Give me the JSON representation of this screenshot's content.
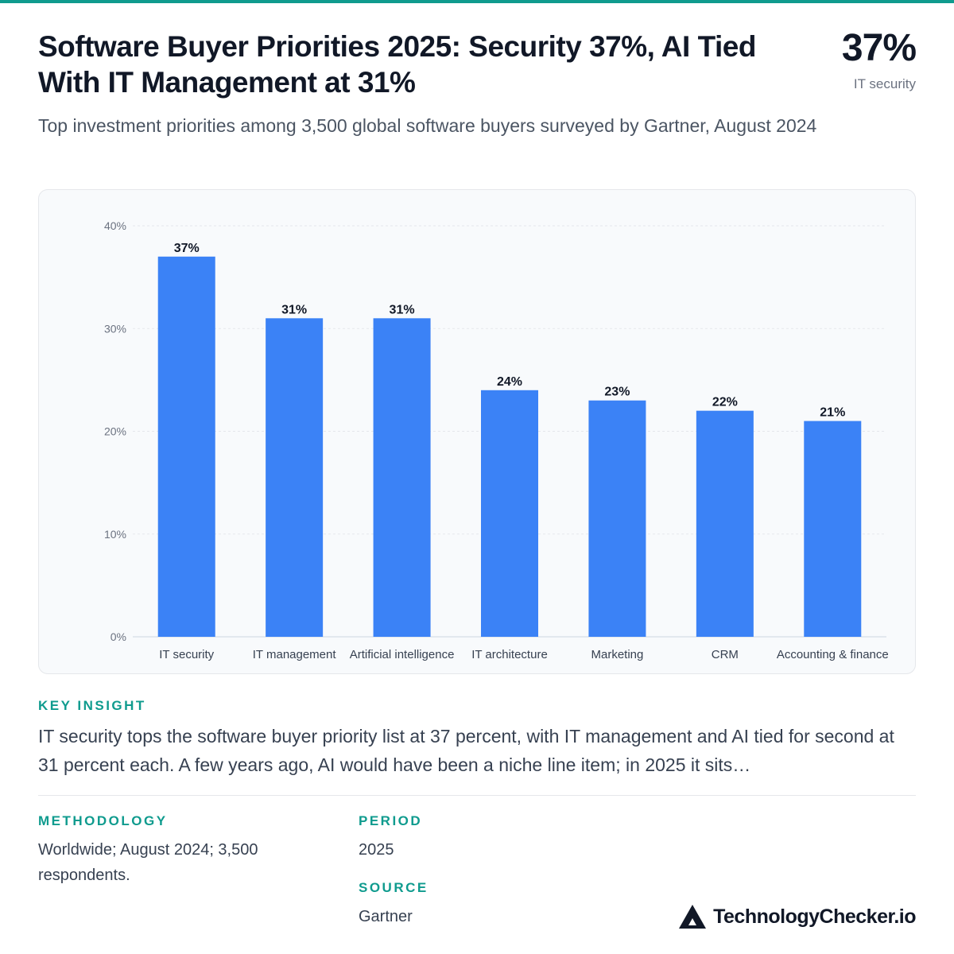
{
  "header": {
    "title": "Software Buyer Priorities 2025: Security 37%, AI Tied With IT Management at 31%",
    "subtitle": "Top investment priorities among 3,500 global software buyers surveyed by Gartner, August 2024",
    "stat_value": "37%",
    "stat_label": "IT security"
  },
  "chart_data": {
    "type": "bar",
    "categories": [
      "IT security",
      "IT management",
      "Artificial intelligence",
      "IT architecture",
      "Marketing",
      "CRM",
      "Accounting & finance"
    ],
    "values": [
      37,
      31,
      31,
      24,
      23,
      22,
      21
    ],
    "value_labels": [
      "37%",
      "31%",
      "31%",
      "24%",
      "23%",
      "22%",
      "21%"
    ],
    "y_ticks": [
      0,
      10,
      20,
      30,
      40
    ],
    "y_tick_labels": [
      "0%",
      "10%",
      "20%",
      "30%",
      "40%"
    ],
    "ylim": [
      0,
      40
    ],
    "grid": true,
    "bar_color": "#3b82f6",
    "title": "",
    "xlabel": "",
    "ylabel": ""
  },
  "insight": {
    "label": "KEY INSIGHT",
    "text": "IT security tops the software buyer priority list at 37 percent, with IT management and AI tied for second at 31 percent each. A few years ago, AI would have been a niche line item; in 2025 it sits…"
  },
  "meta": {
    "methodology_label": "METHODOLOGY",
    "methodology_text": "Worldwide; August 2024; 3,500 respondents.",
    "period_label": "PERIOD",
    "period_text": "2025",
    "source_label": "SOURCE",
    "source_text": "Gartner"
  },
  "brand": {
    "name": "TechnologyChecker.io",
    "icon": "triangle-logo-icon"
  },
  "colors": {
    "accent": "#0f9b8e",
    "bar": "#3b82f6",
    "text": "#111827"
  }
}
